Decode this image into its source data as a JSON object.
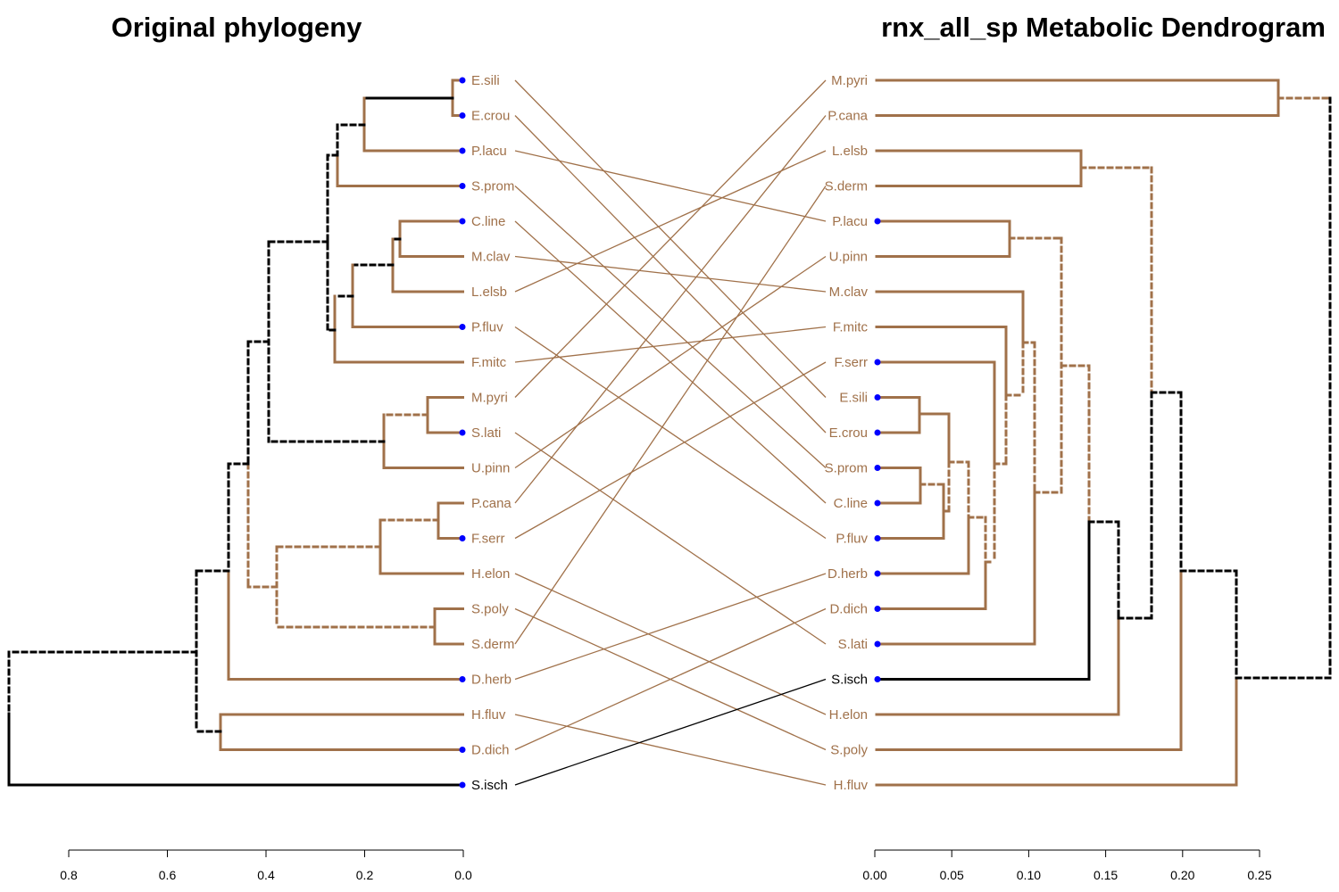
{
  "left_title": "Original phylogeny",
  "right_title": "rnx_all_sp Metabolic Dendrogram",
  "colors": {
    "branch_brown": "#a0714a",
    "branch_black": "#000000",
    "tip_dot": "#0000ff",
    "background": "#ffffff"
  },
  "chart_data": {
    "type": "tanglegram",
    "left_tree": {
      "tips": [
        "E.sili",
        "E.crou",
        "P.lacu",
        "S.prom",
        "C.line",
        "M.clav",
        "L.elsb",
        "P.fluv",
        "F.mitc",
        "M.pyri",
        "S.lati",
        "U.pinn",
        "P.cana",
        "F.serr",
        "H.elon",
        "S.poly",
        "S.derm",
        "D.herb",
        "H.fluv",
        "D.dich",
        "S.isch"
      ],
      "tip_colors": [
        "brown",
        "brown",
        "brown",
        "brown",
        "brown",
        "brown",
        "brown",
        "brown",
        "brown",
        "brown",
        "brown",
        "brown",
        "brown",
        "brown",
        "brown",
        "brown",
        "brown",
        "brown",
        "brown",
        "brown",
        "black"
      ],
      "tip_dots": [
        "E.sili",
        "E.crou",
        "P.lacu",
        "S.prom",
        "C.line",
        "P.fluv",
        "S.lati",
        "F.serr",
        "D.herb",
        "D.dich",
        "S.isch"
      ],
      "axis": {
        "ticks": [
          0.8,
          0.6,
          0.4,
          0.2,
          0.0
        ],
        "direction": "right-to-left"
      }
    },
    "right_tree": {
      "tips": [
        "M.pyri",
        "P.cana",
        "L.elsb",
        "S.derm",
        "P.lacu",
        "U.pinn",
        "M.clav",
        "F.mitc",
        "F.serr",
        "E.sili",
        "E.crou",
        "S.prom",
        "C.line",
        "P.fluv",
        "D.herb",
        "D.dich",
        "S.lati",
        "S.isch",
        "H.elon",
        "S.poly",
        "H.fluv"
      ],
      "tip_colors": [
        "brown",
        "brown",
        "brown",
        "brown",
        "brown",
        "brown",
        "brown",
        "brown",
        "brown",
        "brown",
        "brown",
        "brown",
        "brown",
        "brown",
        "brown",
        "brown",
        "brown",
        "black",
        "brown",
        "brown",
        "brown"
      ],
      "tip_dots": [
        "P.lacu",
        "F.serr",
        "E.sili",
        "E.crou",
        "S.prom",
        "C.line",
        "P.fluv",
        "D.herb",
        "D.dich",
        "S.lati",
        "S.isch"
      ],
      "axis": {
        "ticks": [
          "0.00",
          "0.05",
          "0.10",
          "0.15",
          "0.20",
          "0.25"
        ],
        "direction": "left-to-right"
      }
    }
  }
}
